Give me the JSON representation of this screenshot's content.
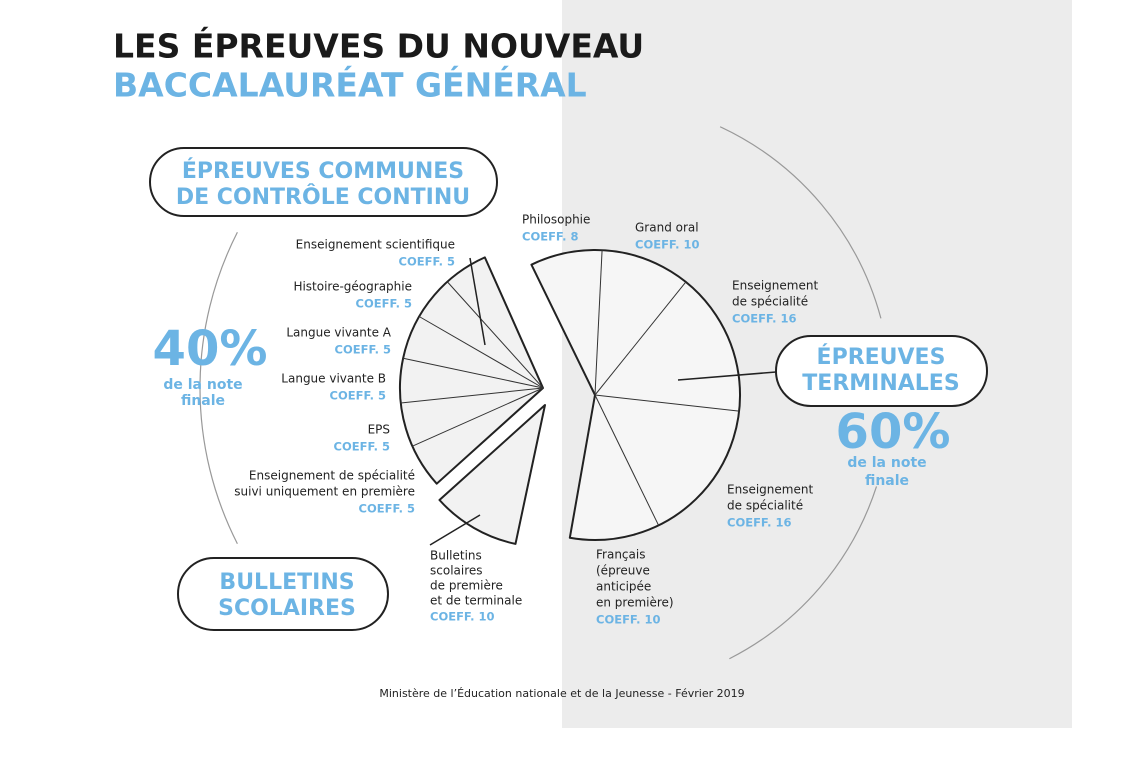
{
  "title": [
    "LES ÉPREUVES DU NOUVEAU",
    "BACCALAURÉAT GÉNÉRAL"
  ],
  "communes": {
    "box": [
      "ÉPREUVES COMMUNES",
      "DE CONTRÔLE CONTINU"
    ],
    "share": "40%",
    "note": [
      "de la note",
      "finale"
    ],
    "items": [
      {
        "name": [
          "Enseignement scientifique"
        ],
        "coeff": "COEFF. 5"
      },
      {
        "name": [
          "Histoire-géographie"
        ],
        "coeff": "COEFF. 5"
      },
      {
        "name": [
          "Langue vivante A"
        ],
        "coeff": "COEFF. 5"
      },
      {
        "name": [
          "Langue vivante B"
        ],
        "coeff": "COEFF. 5"
      },
      {
        "name": [
          "EPS"
        ],
        "coeff": "COEFF. 5"
      },
      {
        "name": [
          "Enseignement de spécialité",
          "suivi uniquement en première"
        ],
        "coeff": "COEFF. 5"
      }
    ]
  },
  "bulletins": {
    "box": [
      "BULLETINS",
      "SCOLAIRES"
    ],
    "name": [
      "Bulletins",
      "scolaires",
      "de première",
      "et de terminale"
    ],
    "coeff": "COEFF. 10"
  },
  "terminales": {
    "box": [
      "ÉPREUVES",
      "TERMINALES"
    ],
    "share": "60%",
    "note": [
      "de la note",
      "finale"
    ],
    "items": [
      {
        "name": [
          "Philosophie"
        ],
        "coeff": "COEFF. 8"
      },
      {
        "name": [
          "Grand oral"
        ],
        "coeff": "COEFF. 10"
      },
      {
        "name": [
          "Enseignement",
          "de spécialité"
        ],
        "coeff": "COEFF. 16"
      },
      {
        "name": [
          "Enseignement",
          "de spécialité"
        ],
        "coeff": "COEFF. 16"
      },
      {
        "name": [
          "Français",
          "(épreuve",
          "anticipée",
          "en première)"
        ],
        "coeff": "COEFF. 10"
      }
    ]
  },
  "source": "Ministère de l’Éducation nationale et de la Jeunesse - Février 2019"
}
